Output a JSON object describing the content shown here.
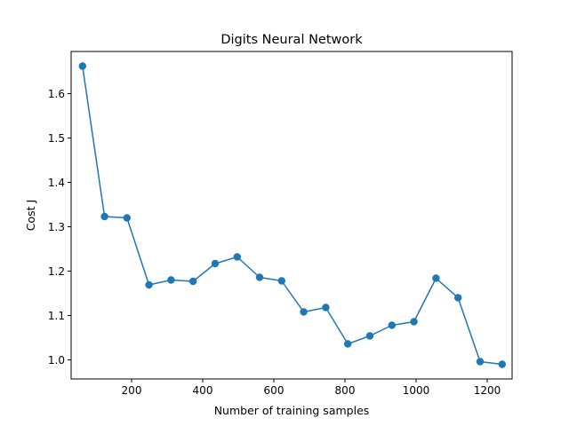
{
  "chart_data": {
    "type": "line",
    "title": "Digits Neural Network",
    "xlabel": "Number of training samples",
    "ylabel": "Cost J",
    "xlim": [
      30,
      1270
    ],
    "ylim": [
      0.957,
      1.695
    ],
    "xticks": [
      200,
      400,
      600,
      800,
      1000,
      1200
    ],
    "yticks": [
      1.0,
      1.1,
      1.2,
      1.3,
      1.4,
      1.5,
      1.6
    ],
    "ytick_labels": [
      "1.0",
      "1.1",
      "1.2",
      "1.3",
      "1.4",
      "1.5",
      "1.6"
    ],
    "grid": false,
    "legend": "none",
    "series": [
      {
        "color": "#1f77b4",
        "marker": "circle",
        "x": [
          62,
          124,
          187,
          249,
          311,
          373,
          435,
          497,
          560,
          622,
          684,
          746,
          808,
          870,
          932,
          994,
          1056,
          1118,
          1180,
          1242
        ],
        "y": [
          1.662,
          1.323,
          1.32,
          1.169,
          1.18,
          1.177,
          1.217,
          1.232,
          1.186,
          1.178,
          1.108,
          1.118,
          1.036,
          1.054,
          1.078,
          1.086,
          1.184,
          1.14,
          0.996,
          0.99
        ]
      }
    ]
  }
}
